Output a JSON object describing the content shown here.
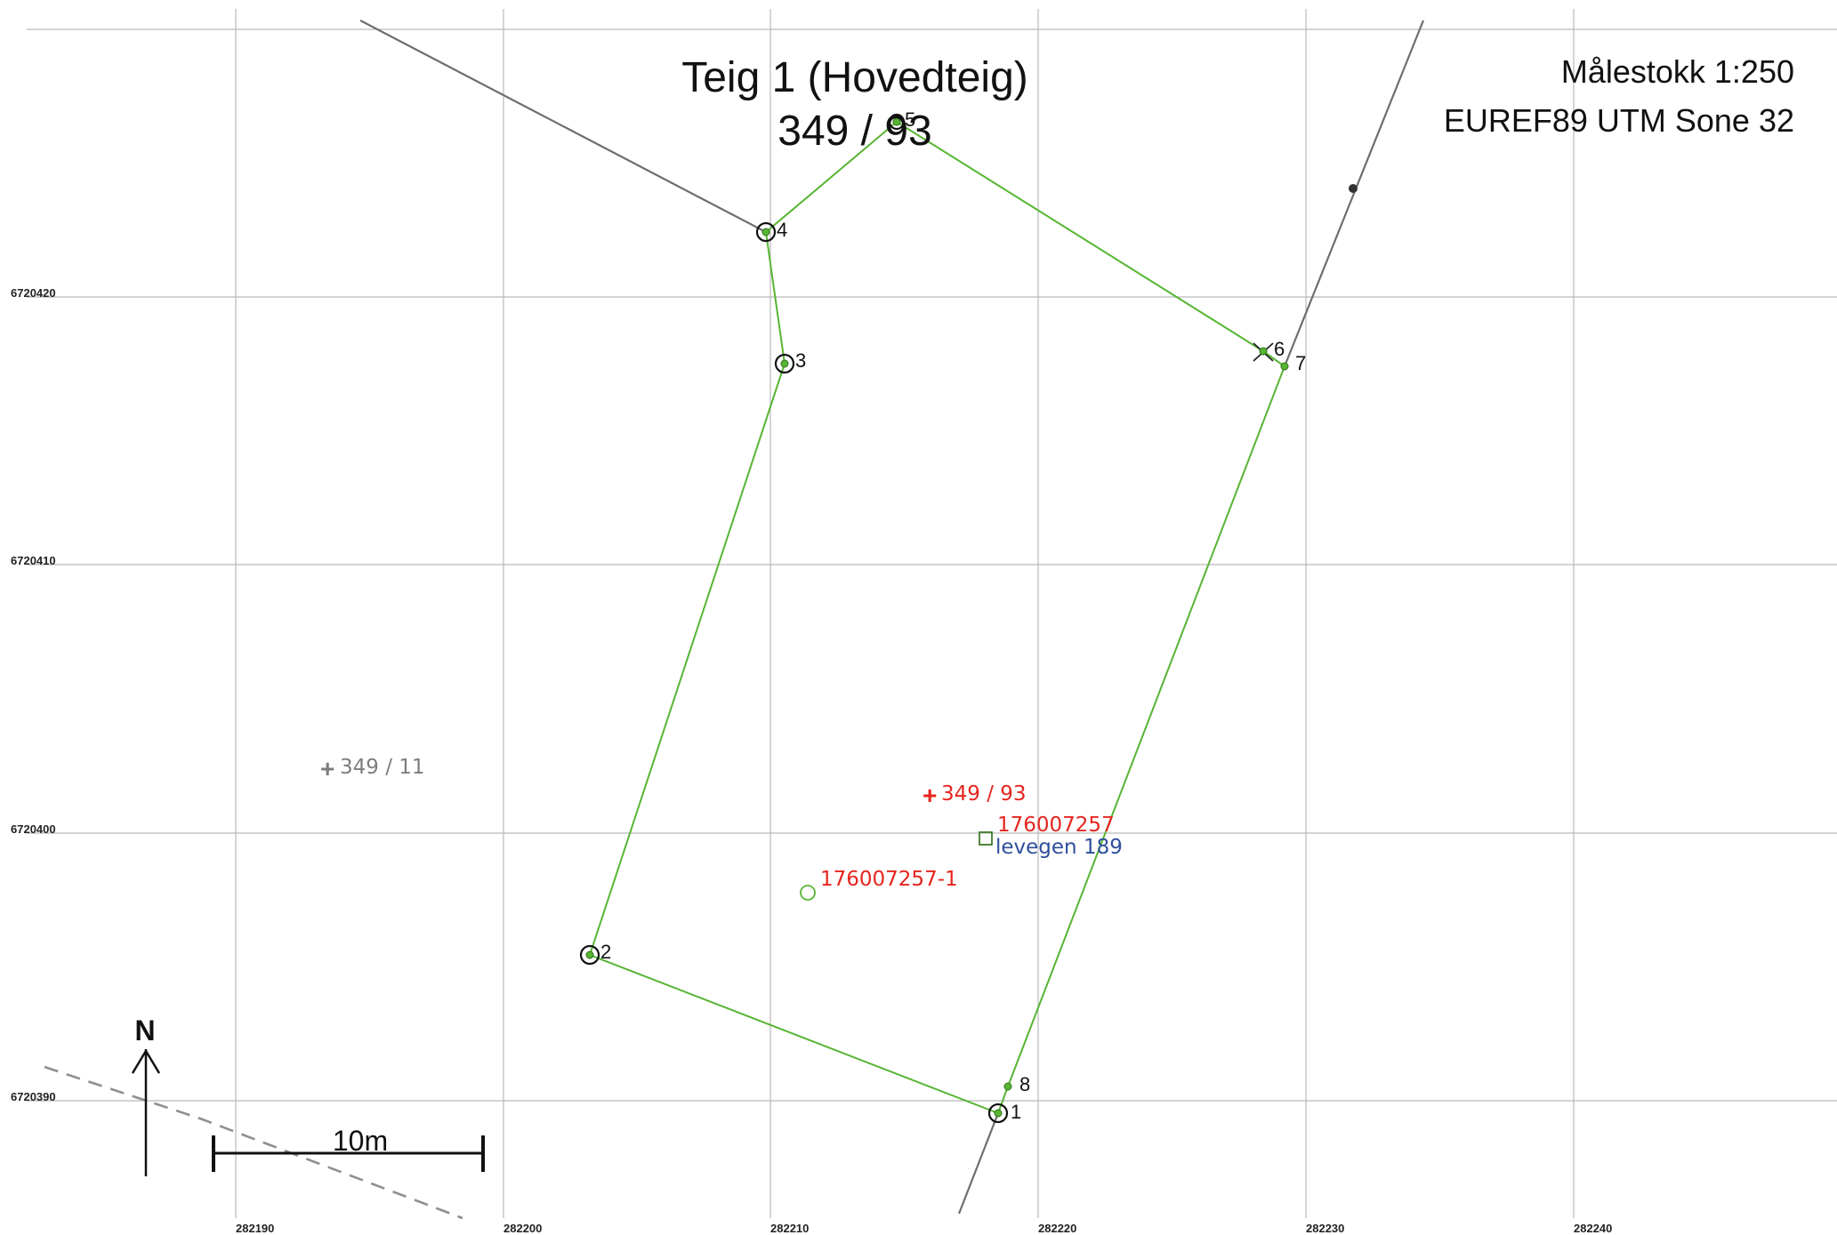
{
  "title": {
    "line1": "Teig 1 (Hovedteig)",
    "line2": "349 / 93"
  },
  "scale_text": "Målestokk 1:250",
  "crs_text": "EUREF89 UTM Sone 32",
  "grid": {
    "x_labels": [
      "282190",
      "282200",
      "282210",
      "282220",
      "282230",
      "282240"
    ],
    "y_labels": [
      "6720420",
      "6720410",
      "6720400",
      "6720390"
    ]
  },
  "boundary_points": [
    {
      "id": "1",
      "label": "1"
    },
    {
      "id": "2",
      "label": "2"
    },
    {
      "id": "3",
      "label": "3"
    },
    {
      "id": "4",
      "label": "4"
    },
    {
      "id": "5",
      "label": "5"
    },
    {
      "id": "6",
      "label": "6"
    },
    {
      "id": "7",
      "label": "7"
    },
    {
      "id": "8",
      "label": "8"
    }
  ],
  "labels": {
    "parcel_main": "349 / 93",
    "parcel_neighbor": "349 / 11",
    "building_id": "176007257",
    "building_id_secondary": "176007257-1",
    "address": "levegen 189"
  },
  "north_arrow": "N",
  "scale_bar": "10m",
  "colors": {
    "parcel_boundary": "#57b532",
    "neighbor_boundary": "#6e6e6e",
    "label_red": "#e5251f",
    "label_blue": "#2e4f9b",
    "label_grey": "#7d7d7d",
    "grid": "#b9b9b9"
  }
}
